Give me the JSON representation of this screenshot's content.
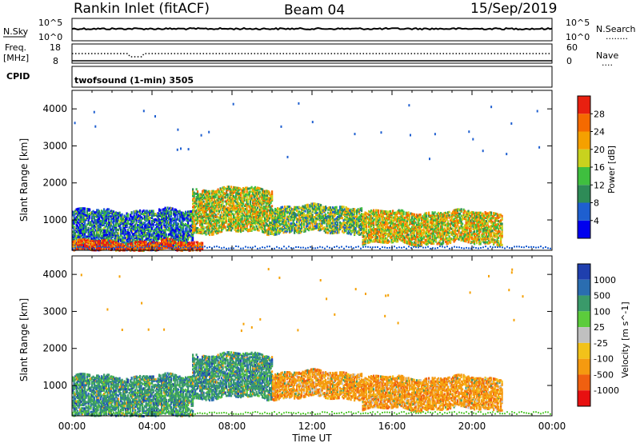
{
  "header": {
    "station": "Rankin Inlet (fitACF)",
    "beam": "Beam 04",
    "date": "15/Sep/2019"
  },
  "noise_panel": {
    "left_label": "N.Sky",
    "right_label": "N.Search",
    "left_ticks": [
      "10^5",
      "10^0"
    ],
    "right_ticks": [
      "10^5",
      "10^0"
    ],
    "right_legend_dash": "........"
  },
  "freq_panel": {
    "left_label_1": "Freq.",
    "left_label_2": "[MHz]",
    "left_ticks": [
      "18",
      "8"
    ],
    "right_ticks": [
      "60",
      "0"
    ],
    "right_label": "Nave",
    "right_legend_dash": "...."
  },
  "cpid": {
    "label": "CPID",
    "mode": "twofsound (1-min) 3505"
  },
  "axes": {
    "ylabel": "Slant Range [km]",
    "xlabel": "Time UT",
    "y_ticks": [
      "1000",
      "2000",
      "3000",
      "4000"
    ],
    "y_tick_values": [
      1000,
      2000,
      3000,
      4000
    ],
    "y_range": [
      180,
      4500
    ],
    "x_ticks": [
      "00:00",
      "04:00",
      "08:00",
      "12:00",
      "16:00",
      "20:00",
      "00:00"
    ],
    "x_range_hours": [
      0,
      24
    ]
  },
  "chart_data": [
    {
      "type": "heatmap",
      "name": "power",
      "colorbar_label": "Power [dB]",
      "colorbar_ticks": [
        "4",
        "8",
        "12",
        "16",
        "20",
        "24",
        "28"
      ],
      "colorbar_values": [
        4,
        8,
        12,
        16,
        20,
        24,
        28
      ],
      "colorbar_colors": [
        "#0000ee",
        "#1e5fd0",
        "#2e8b57",
        "#3fbf3f",
        "#c8d21e",
        "#f5a000",
        "#f56a00",
        "#e82010"
      ],
      "scatter_bands": [
        {
          "t_start": 0.0,
          "t_end": 6.0,
          "r_low": 200,
          "r_high": 1300,
          "level": 0.25
        },
        {
          "t_start": 6.0,
          "t_end": 10.0,
          "r_low": 700,
          "r_high": 1900,
          "level": 0.55
        },
        {
          "t_start": 10.0,
          "t_end": 14.5,
          "r_low": 700,
          "r_high": 1400,
          "level": 0.45
        },
        {
          "t_start": 14.5,
          "t_end": 21.5,
          "r_low": 400,
          "r_high": 1250,
          "level": 0.6
        },
        {
          "t_start": 0.0,
          "t_end": 6.5,
          "r_low": 200,
          "r_high": 450,
          "level": 0.9
        }
      ]
    },
    {
      "type": "heatmap",
      "name": "velocity",
      "colorbar_label": "Velocity [m s^-1]",
      "colorbar_ticks": [
        "1000",
        "500",
        "100",
        "25",
        "-25",
        "-100",
        "-500",
        "-1000"
      ],
      "colorbar_values": [
        1000,
        500,
        100,
        25,
        -25,
        -100,
        -500,
        -1000
      ],
      "colorbar_colors": [
        "#1f3fae",
        "#2a6db0",
        "#3a9a6a",
        "#5ccc3c",
        "#c0c0c0",
        "#f2c21a",
        "#f59a10",
        "#f06010",
        "#e81010"
      ],
      "scatter_bands": [
        {
          "t_start": 0.0,
          "t_end": 6.0,
          "r_low": 200,
          "r_high": 1300,
          "sign": "positive"
        },
        {
          "t_start": 6.0,
          "t_end": 10.0,
          "r_low": 700,
          "r_high": 1900,
          "sign": "positive"
        },
        {
          "t_start": 10.0,
          "t_end": 14.5,
          "r_low": 700,
          "r_high": 1400,
          "sign": "negative"
        },
        {
          "t_start": 14.5,
          "t_end": 21.5,
          "r_low": 400,
          "r_high": 1250,
          "sign": "negative"
        }
      ]
    }
  ]
}
